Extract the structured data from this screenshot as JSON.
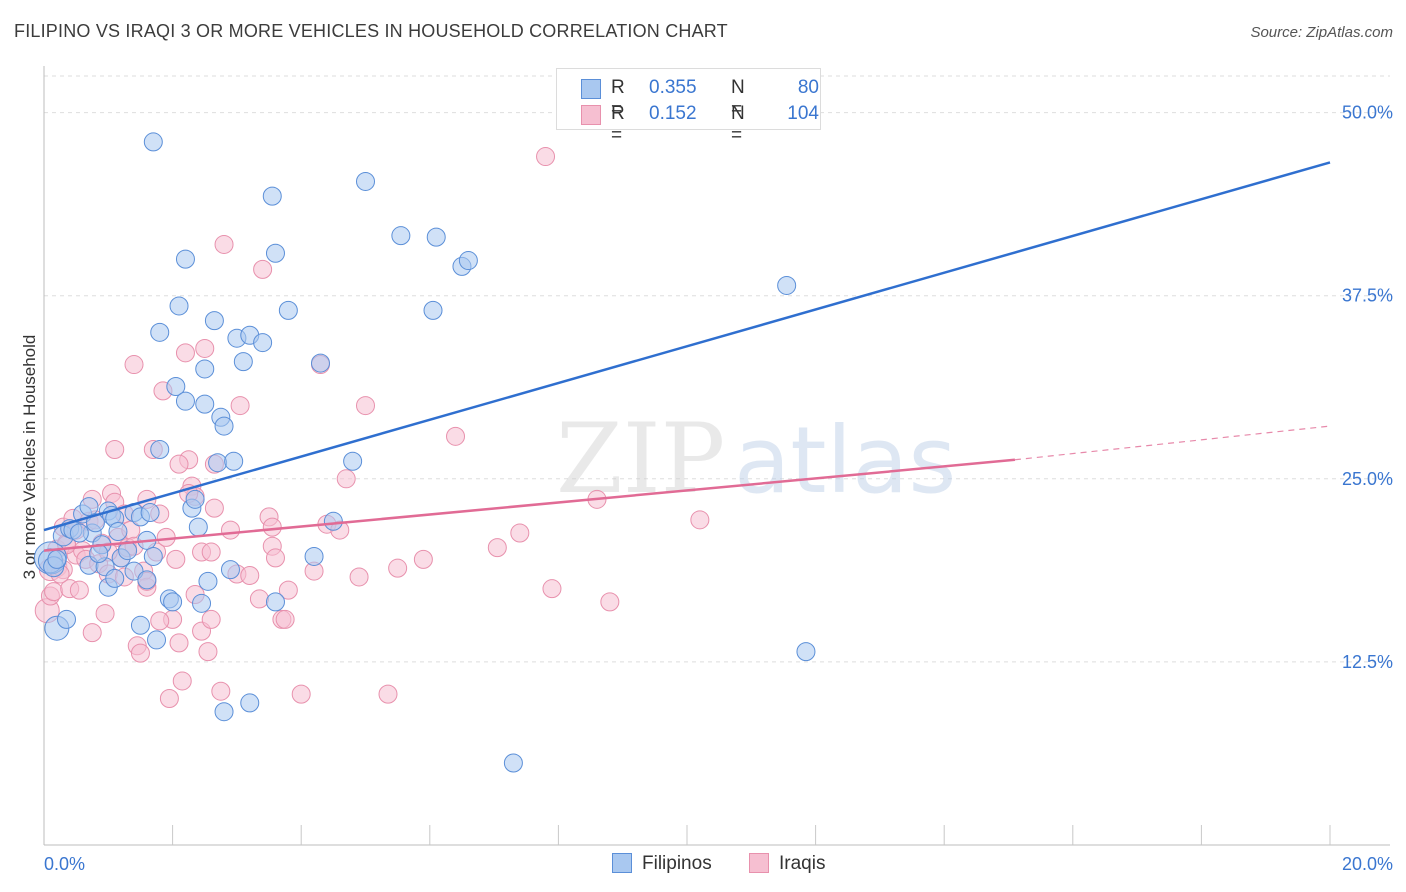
{
  "title": "FILIPINO VS IRAQI 3 OR MORE VEHICLES IN HOUSEHOLD CORRELATION CHART",
  "source": "Source: ZipAtlas.com",
  "watermark": {
    "zip": "ZIP",
    "atlas": "atlas"
  },
  "legend": {
    "filipinos": {
      "r_label": "R =",
      "r_value": "0.355",
      "n_label": "N =",
      "n_value": "80"
    },
    "iraqis": {
      "r_label": "R =",
      "r_value": "0.152",
      "n_label": "N =",
      "n_value": "104"
    }
  },
  "colors": {
    "filipino_fill": "#a9c8f0",
    "filipino_stroke": "#5b8fd8",
    "filipino_line": "#2f6fcf",
    "iraqi_fill": "#f6bfd1",
    "iraqi_stroke": "#e891ad",
    "iraqi_line": "#e16b95",
    "tick_label": "#3a76d0",
    "grid": "#dedede"
  },
  "chart_data": {
    "type": "scatter",
    "title": "FILIPINO VS IRAQI 3 OR MORE VEHICLES IN HOUSEHOLD CORRELATION CHART",
    "xlabel": "",
    "ylabel": "3 or more Vehicles in Household",
    "xlim": [
      0,
      20
    ],
    "ylim": [
      0,
      52.5
    ],
    "x_tick_labels": [
      "0.0%",
      "20.0%"
    ],
    "y_ticks": [
      12.5,
      25.0,
      37.5,
      50.0
    ],
    "y_tick_labels": [
      "12.5%",
      "25.0%",
      "37.5%",
      "50.0%"
    ],
    "grid": true,
    "legend_position": "top-center",
    "series": [
      {
        "name": "Filipinos",
        "r": 0.355,
        "n": 80,
        "trend": {
          "x": [
            0,
            20
          ],
          "y": [
            21.5,
            46.6
          ]
        },
        "points": [
          [
            0.1,
            19.6,
            16
          ],
          [
            0.1,
            19.4,
            12
          ],
          [
            0.15,
            19.0,
            10
          ],
          [
            0.2,
            19.5,
            9
          ],
          [
            0.2,
            14.8,
            12
          ],
          [
            0.3,
            21.1,
            10
          ],
          [
            0.35,
            15.4,
            9
          ],
          [
            0.4,
            21.6,
            9
          ],
          [
            0.45,
            21.5,
            9
          ],
          [
            0.6,
            22.6,
            9
          ],
          [
            0.7,
            19.1,
            9
          ],
          [
            0.7,
            23.1,
            9
          ],
          [
            0.75,
            21.3,
            9
          ],
          [
            0.8,
            22.0,
            9
          ],
          [
            0.9,
            20.5,
            9
          ],
          [
            0.95,
            19.0,
            9
          ],
          [
            1.0,
            22.8,
            9
          ],
          [
            1.0,
            17.6,
            9
          ],
          [
            1.05,
            22.5,
            9
          ],
          [
            1.1,
            18.2,
            9
          ],
          [
            1.1,
            22.3,
            9
          ],
          [
            1.15,
            21.4,
            9
          ],
          [
            1.4,
            22.7,
            9
          ],
          [
            1.4,
            18.7,
            9
          ],
          [
            1.5,
            22.4,
            9
          ],
          [
            1.5,
            15.0,
            9
          ],
          [
            1.6,
            20.8,
            9
          ],
          [
            1.6,
            18.1,
            9
          ],
          [
            1.65,
            22.7,
            9
          ],
          [
            1.7,
            48.0,
            9
          ],
          [
            1.75,
            14.0,
            9
          ],
          [
            1.8,
            27.0,
            9
          ],
          [
            1.8,
            35.0,
            9
          ],
          [
            1.95,
            16.8,
            9
          ],
          [
            2.0,
            16.6,
            9
          ],
          [
            2.05,
            31.3,
            9
          ],
          [
            2.1,
            36.8,
            9
          ],
          [
            2.2,
            30.3,
            9
          ],
          [
            2.2,
            40.0,
            9
          ],
          [
            2.3,
            23.0,
            9
          ],
          [
            2.35,
            23.6,
            9
          ],
          [
            2.4,
            21.7,
            9
          ],
          [
            2.45,
            16.5,
            9
          ],
          [
            2.5,
            32.5,
            9
          ],
          [
            2.5,
            30.1,
            9
          ],
          [
            2.55,
            18.0,
            9
          ],
          [
            2.65,
            35.8,
            9
          ],
          [
            2.7,
            26.1,
            9
          ],
          [
            2.75,
            29.2,
            9
          ],
          [
            2.8,
            28.6,
            9
          ],
          [
            2.9,
            18.8,
            9
          ],
          [
            2.95,
            26.2,
            9
          ],
          [
            3.0,
            34.6,
            9
          ],
          [
            3.1,
            33.0,
            9
          ],
          [
            3.2,
            34.8,
            9
          ],
          [
            3.2,
            9.7,
            9
          ],
          [
            3.4,
            34.3,
            9
          ],
          [
            3.55,
            44.3,
            9
          ],
          [
            3.6,
            40.4,
            9
          ],
          [
            3.6,
            16.6,
            9
          ],
          [
            3.8,
            36.5,
            9
          ],
          [
            4.2,
            19.7,
            9
          ],
          [
            4.3,
            32.9,
            9
          ],
          [
            4.5,
            22.1,
            9
          ],
          [
            4.8,
            26.2,
            9
          ],
          [
            5.0,
            45.3,
            9
          ],
          [
            5.55,
            41.6,
            9
          ],
          [
            6.05,
            36.5,
            9
          ],
          [
            6.1,
            41.5,
            9
          ],
          [
            6.5,
            39.5,
            9
          ],
          [
            6.6,
            39.9,
            9
          ],
          [
            7.3,
            5.6,
            9
          ],
          [
            1.2,
            19.6,
            9
          ],
          [
            0.55,
            21.3,
            9
          ],
          [
            0.85,
            19.9,
            9
          ],
          [
            1.3,
            20.1,
            9
          ],
          [
            1.7,
            19.7,
            9
          ],
          [
            2.8,
            9.1,
            9
          ],
          [
            11.55,
            38.2,
            9
          ],
          [
            11.85,
            13.2,
            9
          ]
        ]
      },
      {
        "name": "Iraqis",
        "r": 0.152,
        "n": 104,
        "trend": {
          "x": [
            0,
            15.1
          ],
          "y": [
            20.1,
            26.3
          ]
        },
        "trend_dashed": {
          "x": [
            15.1,
            20
          ],
          "y": [
            26.3,
            28.6
          ]
        },
        "points": [
          [
            0.05,
            16.0,
            12
          ],
          [
            0.1,
            17.0,
            9
          ],
          [
            0.1,
            18.8,
            11
          ],
          [
            0.15,
            17.3,
            9
          ],
          [
            0.2,
            19.0,
            10
          ],
          [
            0.2,
            20.2,
            9
          ],
          [
            0.3,
            18.8,
            9
          ],
          [
            0.3,
            21.7,
            9
          ],
          [
            0.35,
            20.6,
            9
          ],
          [
            0.4,
            17.5,
            9
          ],
          [
            0.45,
            22.3,
            9
          ],
          [
            0.5,
            21.5,
            9
          ],
          [
            0.5,
            19.8,
            9
          ],
          [
            0.6,
            20.1,
            9
          ],
          [
            0.65,
            19.5,
            9
          ],
          [
            0.7,
            22.1,
            9
          ],
          [
            0.75,
            14.5,
            9
          ],
          [
            0.75,
            23.6,
            9
          ],
          [
            0.8,
            22.2,
            9
          ],
          [
            0.85,
            19.2,
            9
          ],
          [
            0.9,
            20.6,
            9
          ],
          [
            0.95,
            15.8,
            9
          ],
          [
            1.0,
            18.5,
            9
          ],
          [
            1.05,
            24.0,
            9
          ],
          [
            1.1,
            23.4,
            9
          ],
          [
            1.1,
            27.0,
            9
          ],
          [
            1.15,
            21.0,
            9
          ],
          [
            1.2,
            19.6,
            9
          ],
          [
            1.25,
            22.6,
            9
          ],
          [
            1.3,
            20.3,
            9
          ],
          [
            1.35,
            21.5,
            9
          ],
          [
            1.4,
            32.8,
            9
          ],
          [
            1.45,
            13.6,
            9
          ],
          [
            1.5,
            13.1,
            9
          ],
          [
            1.55,
            18.7,
            9
          ],
          [
            1.6,
            17.6,
            9
          ],
          [
            1.6,
            23.6,
            9
          ],
          [
            1.7,
            27.0,
            9
          ],
          [
            1.75,
            20.0,
            9
          ],
          [
            1.8,
            22.6,
            9
          ],
          [
            1.85,
            31.0,
            9
          ],
          [
            1.9,
            21.0,
            9
          ],
          [
            1.95,
            10.0,
            9
          ],
          [
            2.0,
            15.4,
            9
          ],
          [
            2.05,
            19.5,
            9
          ],
          [
            2.1,
            13.8,
            9
          ],
          [
            2.15,
            11.2,
            9
          ],
          [
            2.2,
            33.6,
            9
          ],
          [
            2.25,
            26.3,
            9
          ],
          [
            2.3,
            24.5,
            9
          ],
          [
            2.35,
            23.8,
            9
          ],
          [
            2.35,
            17.1,
            9
          ],
          [
            2.45,
            20.0,
            9
          ],
          [
            2.45,
            14.6,
            9
          ],
          [
            2.5,
            33.9,
            9
          ],
          [
            2.55,
            13.2,
            9
          ],
          [
            2.6,
            15.4,
            9
          ],
          [
            2.6,
            20.0,
            9
          ],
          [
            2.65,
            26.0,
            9
          ],
          [
            2.8,
            41.0,
            9
          ],
          [
            2.75,
            10.5,
            9
          ],
          [
            3.0,
            18.5,
            9
          ],
          [
            3.05,
            30.0,
            9
          ],
          [
            3.2,
            18.4,
            9
          ],
          [
            3.4,
            39.3,
            9
          ],
          [
            3.5,
            22.4,
            9
          ],
          [
            3.55,
            21.7,
            9
          ],
          [
            3.55,
            20.4,
            9
          ],
          [
            3.6,
            19.6,
            9
          ],
          [
            3.7,
            15.4,
            9
          ],
          [
            3.75,
            15.4,
            9
          ],
          [
            3.8,
            17.4,
            9
          ],
          [
            4.0,
            10.3,
            9
          ],
          [
            4.2,
            18.7,
            9
          ],
          [
            4.3,
            32.8,
            9
          ],
          [
            4.4,
            21.9,
            9
          ],
          [
            4.6,
            21.5,
            9
          ],
          [
            4.7,
            25.0,
            9
          ],
          [
            4.9,
            18.3,
            9
          ],
          [
            5.0,
            30.0,
            9
          ],
          [
            5.35,
            10.3,
            9
          ],
          [
            5.5,
            18.9,
            9
          ],
          [
            5.9,
            19.5,
            9
          ],
          [
            6.4,
            27.9,
            9
          ],
          [
            7.05,
            20.3,
            9
          ],
          [
            7.4,
            21.3,
            9
          ],
          [
            7.8,
            47.0,
            9
          ],
          [
            7.9,
            17.5,
            9
          ],
          [
            8.6,
            23.6,
            9
          ],
          [
            8.8,
            16.6,
            9
          ],
          [
            10.2,
            22.2,
            9
          ],
          [
            0.25,
            18.5,
            9
          ],
          [
            0.55,
            17.4,
            9
          ],
          [
            1.0,
            20.0,
            9
          ],
          [
            1.4,
            20.4,
            9
          ],
          [
            1.8,
            15.3,
            9
          ],
          [
            2.25,
            24.0,
            9
          ],
          [
            2.65,
            23.0,
            9
          ],
          [
            2.9,
            21.5,
            9
          ],
          [
            3.35,
            16.8,
            9
          ],
          [
            1.6,
            18.0,
            9
          ],
          [
            0.35,
            20.5,
            9
          ],
          [
            2.1,
            26.0,
            9
          ],
          [
            1.25,
            18.3,
            9
          ]
        ]
      }
    ]
  }
}
